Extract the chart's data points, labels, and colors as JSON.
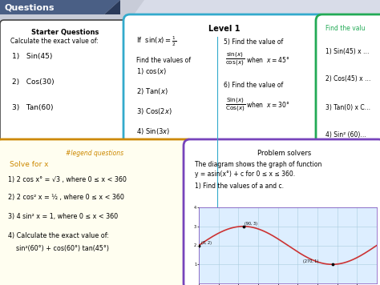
{
  "bg_color": "#d8dce8",
  "title_banner_color": "#3a4f7a",
  "title_banner_color2": "#8899bb",
  "title_text": "Questions",
  "starter_box_edge": "#333333",
  "starter_title": "Starter Questions",
  "starter_subtitle": "Calculate the exact value of:",
  "starter_items": [
    "1)   Sin(45)",
    "2)   Cos(30)",
    "3)   Tan(60)"
  ],
  "level1_box_color": "#33aacc",
  "level1_title": "Level 1",
  "right_box_color": "#22aa55",
  "right_items": [
    "1) Sin(45) x …",
    "2) Cos(45) x …",
    "3) Tan(0) x C…",
    "4) Sin² (60)…"
  ],
  "legend_box_color": "#cc8800",
  "legend_title": "#legend questions",
  "legend_subtitle": "Solve for x",
  "legend_items": [
    "1) 2 cos x° = √3 , where 0 ≤ x < 360",
    "2) 2 cos² x = ½ , where 0 ≤ x < 360",
    "3) 4 sin² x = 1, where 0 ≤ x < 360",
    "4) Calculate the exact value of:",
    "    sin²(60°) + cos(60°) tan(45°)"
  ],
  "problem_box_color": "#7744bb",
  "problem_title": "Problem solvers",
  "problem_text1": "The diagram shows the graph of function",
  "problem_text2": "y = asin(x°) + c for 0 ≤ x ≤ 360.",
  "problem_text3": "1) Find the values of a and c.",
  "graph_points": [
    [
      0,
      2
    ],
    [
      90,
      3
    ],
    [
      270,
      1
    ]
  ],
  "graph_color": "#cc3333",
  "graph_bg": "#ddeeff",
  "graph_grid": "#aaccdd"
}
